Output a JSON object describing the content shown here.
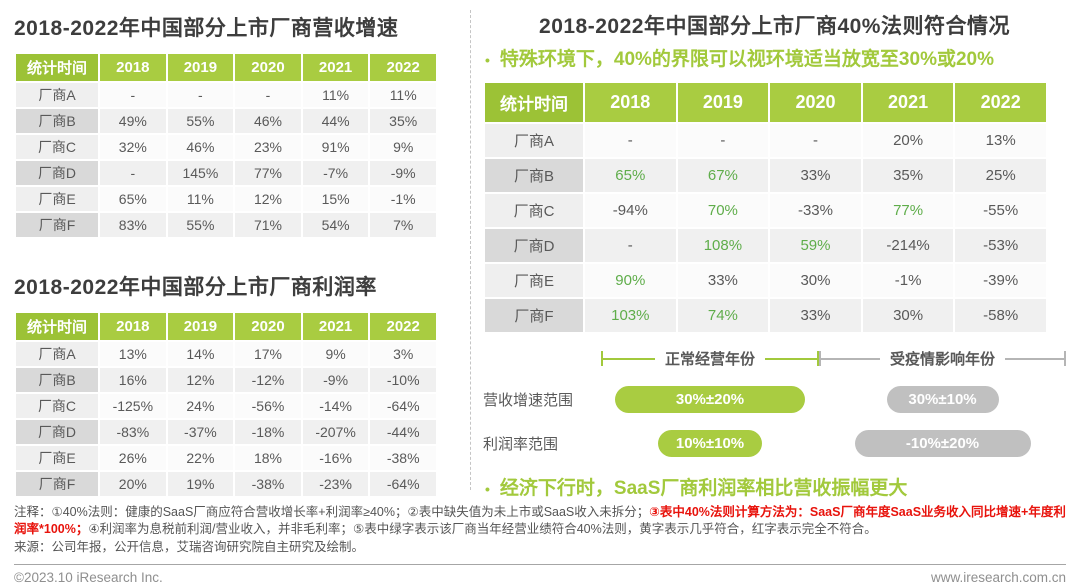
{
  "colors": {
    "header_green": "#a9cc41",
    "header_green_dark": "#9cc236",
    "cell_text_green": "#5fad4a",
    "accent_green": "#a2c93c",
    "pill_gray": "#c0c0c0",
    "note_red": "#e8130c"
  },
  "left": {
    "table1": {
      "title": "2018-2022年中国部分上市厂商营收增速",
      "header": [
        "统计时间",
        "2018",
        "2019",
        "2020",
        "2021",
        "2022"
      ],
      "rows": [
        {
          "label": "厂商A",
          "values": [
            "-",
            "-",
            "-",
            "11%",
            "11%"
          ]
        },
        {
          "label": "厂商B",
          "values": [
            "49%",
            "55%",
            "46%",
            "44%",
            "35%"
          ]
        },
        {
          "label": "厂商C",
          "values": [
            "32%",
            "46%",
            "23%",
            "91%",
            "9%"
          ]
        },
        {
          "label": "厂商D",
          "values": [
            "-",
            "145%",
            "77%",
            "-7%",
            "-9%"
          ]
        },
        {
          "label": "厂商E",
          "values": [
            "65%",
            "11%",
            "12%",
            "15%",
            "-1%"
          ]
        },
        {
          "label": "厂商F",
          "values": [
            "83%",
            "55%",
            "71%",
            "54%",
            "7%"
          ]
        }
      ]
    },
    "table2": {
      "title": "2018-2022年中国部分上市厂商利润率",
      "header": [
        "统计时间",
        "2018",
        "2019",
        "2020",
        "2021",
        "2022"
      ],
      "rows": [
        {
          "label": "厂商A",
          "values": [
            "13%",
            "14%",
            "17%",
            "9%",
            "3%"
          ]
        },
        {
          "label": "厂商B",
          "values": [
            "16%",
            "12%",
            "-12%",
            "-9%",
            "-10%"
          ]
        },
        {
          "label": "厂商C",
          "values": [
            "-125%",
            "24%",
            "-56%",
            "-14%",
            "-64%"
          ]
        },
        {
          "label": "厂商D",
          "values": [
            "-83%",
            "-37%",
            "-18%",
            "-207%",
            "-44%"
          ]
        },
        {
          "label": "厂商E",
          "values": [
            "26%",
            "22%",
            "18%",
            "-16%",
            "-38%"
          ]
        },
        {
          "label": "厂商F",
          "values": [
            "20%",
            "19%",
            "-38%",
            "-23%",
            "-64%"
          ]
        }
      ]
    }
  },
  "right": {
    "title": "2018-2022年中国部分上市厂商40%法则符合情况",
    "note": "特殊环境下，40%的界限可以视环境适当放宽至30%或20%",
    "table": {
      "header": [
        "统计时间",
        "2018",
        "2019",
        "2020",
        "2021",
        "2022"
      ],
      "rows": [
        {
          "label": "厂商A",
          "values": [
            "-",
            "-",
            "-",
            "20%",
            "13%"
          ],
          "green": []
        },
        {
          "label": "厂商B",
          "values": [
            "65%",
            "67%",
            "33%",
            "35%",
            "25%"
          ],
          "green": [
            0,
            1
          ]
        },
        {
          "label": "厂商C",
          "values": [
            "-94%",
            "70%",
            "-33%",
            "77%",
            "-55%"
          ],
          "green": [
            1,
            3
          ]
        },
        {
          "label": "厂商D",
          "values": [
            "-",
            "108%",
            "59%",
            "-214%",
            "-53%"
          ],
          "green": [
            1,
            2
          ]
        },
        {
          "label": "厂商E",
          "values": [
            "90%",
            "33%",
            "30%",
            "-1%",
            "-39%"
          ],
          "green": [
            0
          ]
        },
        {
          "label": "厂商F",
          "values": [
            "103%",
            "74%",
            "33%",
            "30%",
            "-58%"
          ],
          "green": [
            0,
            1
          ]
        }
      ]
    },
    "legend": {
      "normal_label": "正常经营年份",
      "covid_label": "受疫情影响年份",
      "rows": [
        {
          "label": "营收增速范围",
          "normal": "30%±20%",
          "covid": "30%±10%"
        },
        {
          "label": "利润率范围",
          "normal": "10%±10%",
          "covid": "-10%±20%"
        }
      ]
    },
    "bottom_note": "经济下行时，SaaS厂商利润率相比营收振幅更大"
  },
  "footnotes": {
    "part1": "注释：①40%法则：健康的SaaS厂商应符合营收增长率+利润率≥40%；②表中缺失值为未上市或SaaS收入未拆分；",
    "part2_red": "③表中40%法则计算方法为：SaaS厂商年度SaaS业务收入同比增速+年度利润率*100%；",
    "part3": "④利润率为息税前利润/营业收入，并非毛利率；⑤表中绿字表示该厂商当年经营业绩符合40%法则，黄字表示几乎符合，红字表示完全不符合。",
    "source": "来源：公司年报，公开信息，艾瑞咨询研究院自主研究及绘制。"
  },
  "footer": {
    "copyright": "©2023.10 iResearch Inc.",
    "website": "www.iresearch.com.cn"
  }
}
